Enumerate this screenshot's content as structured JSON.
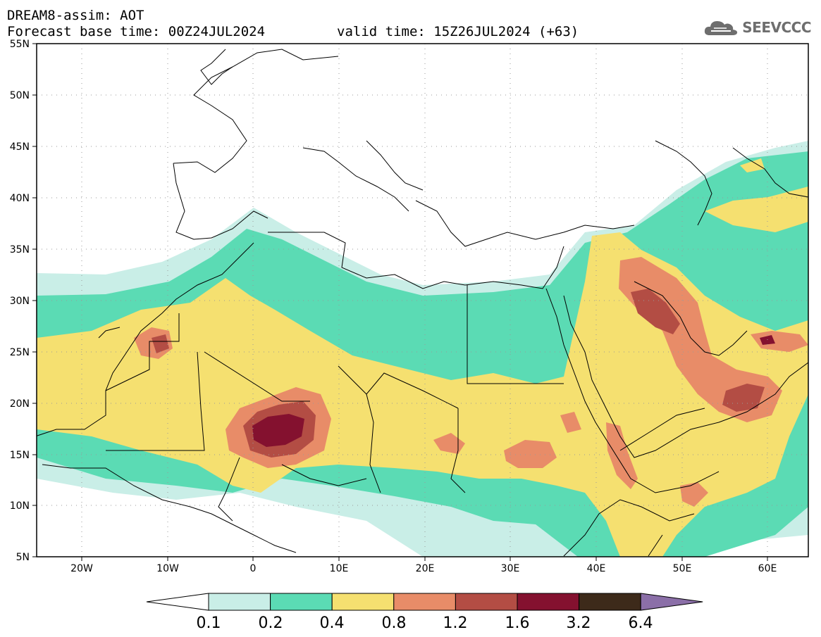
{
  "header": {
    "title": "DREAM8-assim: AOT",
    "base_label": "Forecast base time:",
    "base_time": "00Z24JUL2024",
    "valid_label": "valid time:",
    "valid_time": "15Z26JUL2024",
    "lead": "(+63)"
  },
  "logo": {
    "text": "SEEVCCC",
    "icon": "cloud-icon"
  },
  "map": {
    "lon_range": [
      -25,
      65
    ],
    "lat_range": [
      5,
      55
    ],
    "lat_ticks": [
      "55N",
      "50N",
      "45N",
      "40N",
      "35N",
      "30N",
      "25N",
      "20N",
      "15N",
      "10N",
      "5N"
    ],
    "lon_ticks": [
      "20W",
      "10W",
      "0",
      "10E",
      "20E",
      "30E",
      "40E",
      "50E",
      "60E"
    ],
    "grid": true
  },
  "colorbar": {
    "labels": [
      "0.1",
      "0.2",
      "0.4",
      "0.8",
      "1.2",
      "1.6",
      "3.2",
      "6.4"
    ],
    "colors": [
      "#ffffff",
      "#c9eee7",
      "#5bdbb4",
      "#f5e070",
      "#e88c68",
      "#b34d44",
      "#84112f",
      "#3d2a1a",
      "#8b6fa8"
    ]
  }
}
